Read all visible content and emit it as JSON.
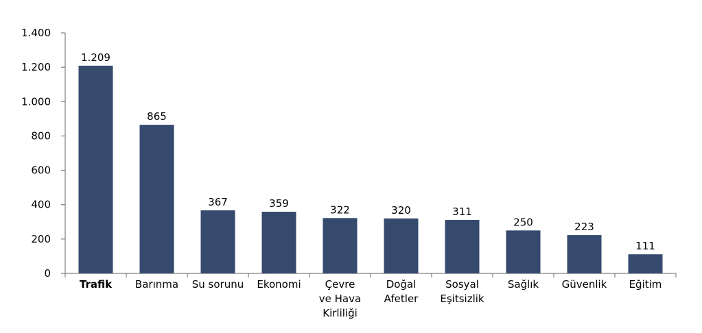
{
  "chart_data": {
    "type": "bar",
    "title": "",
    "xlabel": "",
    "ylabel": "",
    "ylim": [
      0,
      1400
    ],
    "yticks": [
      0,
      200,
      400,
      600,
      800,
      1000,
      1200,
      1400
    ],
    "ytick_labels": [
      "0",
      "200",
      "400",
      "600",
      "800",
      "1.000",
      "1.200",
      "1.400"
    ],
    "grid": false,
    "bar_color": "#354a6d",
    "categories": [
      {
        "lines": [
          "Trafik"
        ],
        "bold": true
      },
      {
        "lines": [
          "Barınma"
        ],
        "bold": false
      },
      {
        "lines": [
          "Su sorunu"
        ],
        "bold": false
      },
      {
        "lines": [
          "Ekonomi"
        ],
        "bold": false
      },
      {
        "lines": [
          "Çevre",
          "ve Hava",
          "Kirliliği"
        ],
        "bold": false
      },
      {
        "lines": [
          "Doğal",
          "Afetler"
        ],
        "bold": false
      },
      {
        "lines": [
          "Sosyal",
          "Eşitsizlik"
        ],
        "bold": false
      },
      {
        "lines": [
          "Sağlık"
        ],
        "bold": false
      },
      {
        "lines": [
          "Güvenlik"
        ],
        "bold": false
      },
      {
        "lines": [
          "Eğitim"
        ],
        "bold": false
      }
    ],
    "values": [
      1209,
      865,
      367,
      359,
      322,
      320,
      311,
      250,
      223,
      111
    ],
    "value_labels": [
      "1.209",
      "865",
      "367",
      "359",
      "322",
      "320",
      "311",
      "250",
      "223",
      "111"
    ]
  }
}
